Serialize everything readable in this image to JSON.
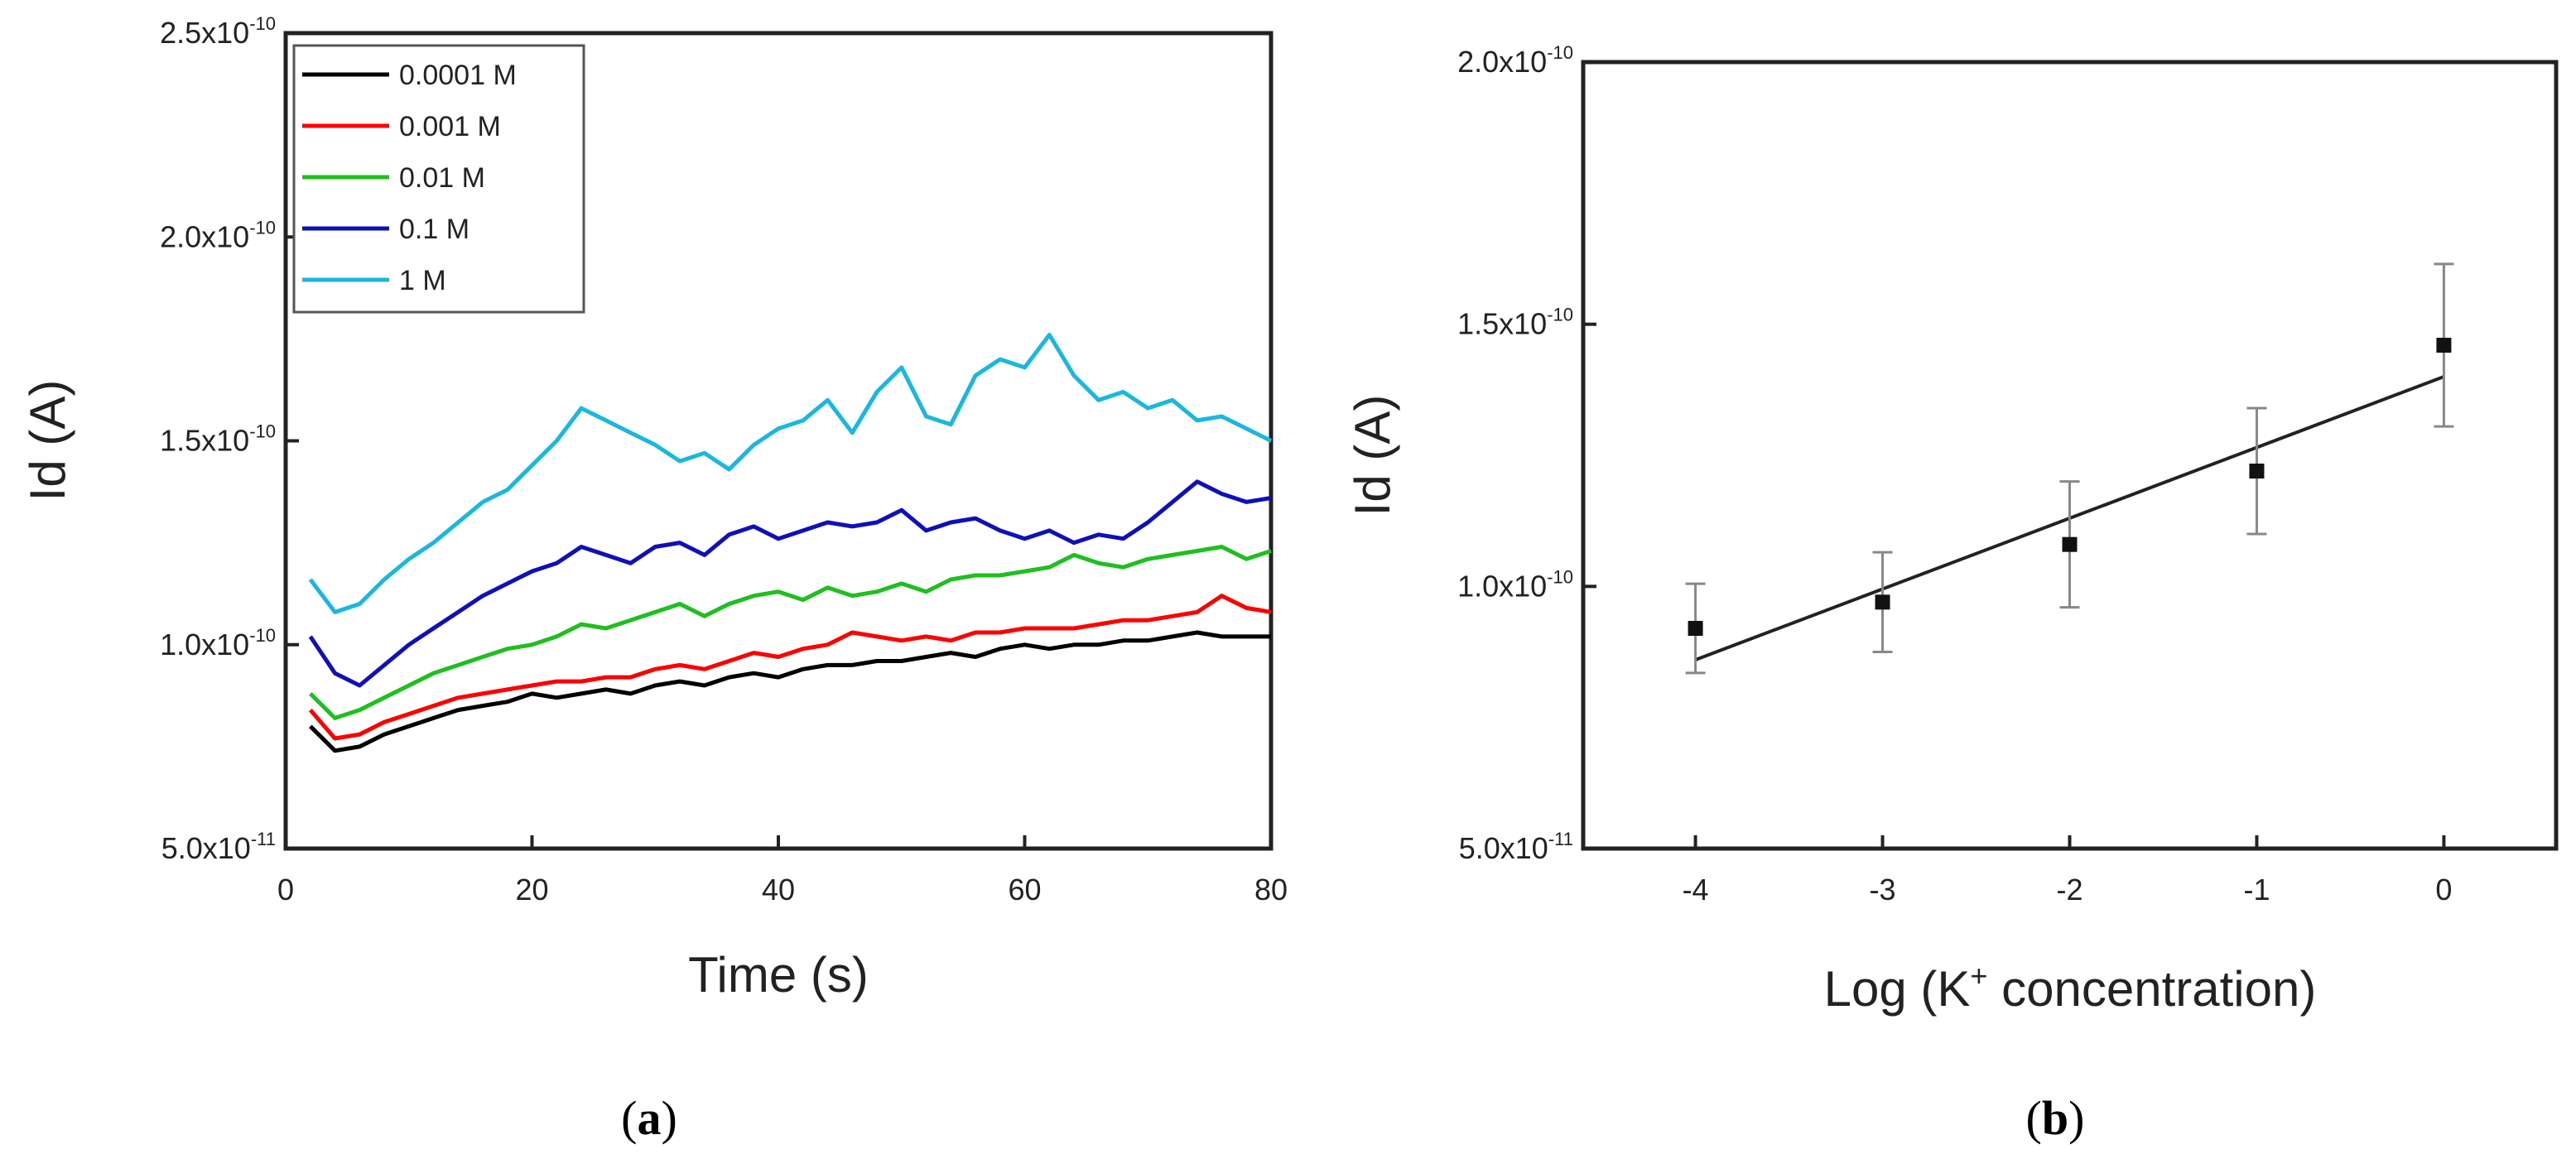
{
  "chart_data": [
    {
      "type": "line",
      "panel_label": "(a)",
      "panel_letter": "a",
      "xlabel": "Time (s)",
      "ylabel": "Id (A)",
      "xlim": [
        0,
        80
      ],
      "ylim": [
        5e-11,
        2.5e-10
      ],
      "x_ticks": [
        0,
        20,
        40,
        60,
        80
      ],
      "x_tick_labels": [
        "0",
        "20",
        "40",
        "60",
        "80"
      ],
      "y_ticks": [
        5e-11,
        1e-10,
        1.5e-10,
        2e-10,
        2.5e-10
      ],
      "y_tick_labels": [
        {
          "mant": "5.0x10",
          "exp": "-11"
        },
        {
          "mant": "1.0x10",
          "exp": "-10"
        },
        {
          "mant": "1.5x10",
          "exp": "-10"
        },
        {
          "mant": "2.0x10",
          "exp": "-10"
        },
        {
          "mant": "2.5x10",
          "exp": "-10"
        }
      ],
      "legend_position": "top-left",
      "x": [
        2,
        4,
        6,
        8,
        10,
        12,
        14,
        16,
        18,
        20,
        22,
        24,
        26,
        28,
        30,
        32,
        34,
        36,
        38,
        40,
        42,
        44,
        46,
        48,
        50,
        52,
        54,
        56,
        58,
        60,
        62,
        64,
        66,
        68,
        70,
        72,
        74,
        76,
        78,
        80
      ],
      "series": [
        {
          "name": "0.0001 M",
          "color": "#000000",
          "values": [
            8e-11,
            7.4e-11,
            7.5e-11,
            7.8e-11,
            8e-11,
            8.2e-11,
            8.4e-11,
            8.5e-11,
            8.6e-11,
            8.8e-11,
            8.7e-11,
            8.8e-11,
            8.9e-11,
            8.8e-11,
            9e-11,
            9.1e-11,
            9e-11,
            9.2e-11,
            9.3e-11,
            9.2e-11,
            9.4e-11,
            9.5e-11,
            9.5e-11,
            9.6e-11,
            9.6e-11,
            9.7e-11,
            9.8e-11,
            9.7e-11,
            9.9e-11,
            1e-10,
            9.9e-11,
            1e-10,
            1e-10,
            1.01e-10,
            1.01e-10,
            1.02e-10,
            1.03e-10,
            1.02e-10,
            1.02e-10,
            1.02e-10
          ]
        },
        {
          "name": "0.001 M",
          "color": "#ff0000",
          "values": [
            8.4e-11,
            7.7e-11,
            7.8e-11,
            8.1e-11,
            8.3e-11,
            8.5e-11,
            8.7e-11,
            8.8e-11,
            8.9e-11,
            9e-11,
            9.1e-11,
            9.1e-11,
            9.2e-11,
            9.2e-11,
            9.4e-11,
            9.5e-11,
            9.4e-11,
            9.6e-11,
            9.8e-11,
            9.7e-11,
            9.9e-11,
            1e-10,
            1.03e-10,
            1.02e-10,
            1.01e-10,
            1.02e-10,
            1.01e-10,
            1.03e-10,
            1.03e-10,
            1.04e-10,
            1.04e-10,
            1.04e-10,
            1.05e-10,
            1.06e-10,
            1.06e-10,
            1.07e-10,
            1.08e-10,
            1.12e-10,
            1.09e-10,
            1.08e-10
          ]
        },
        {
          "name": "0.01 M",
          "color": "#1fbf1f",
          "values": [
            8.8e-11,
            8.2e-11,
            8.4e-11,
            8.7e-11,
            9e-11,
            9.3e-11,
            9.5e-11,
            9.7e-11,
            9.9e-11,
            1e-10,
            1.02e-10,
            1.05e-10,
            1.04e-10,
            1.06e-10,
            1.08e-10,
            1.1e-10,
            1.07e-10,
            1.1e-10,
            1.12e-10,
            1.13e-10,
            1.11e-10,
            1.14e-10,
            1.12e-10,
            1.13e-10,
            1.15e-10,
            1.13e-10,
            1.16e-10,
            1.17e-10,
            1.17e-10,
            1.18e-10,
            1.19e-10,
            1.22e-10,
            1.2e-10,
            1.19e-10,
            1.21e-10,
            1.22e-10,
            1.23e-10,
            1.24e-10,
            1.21e-10,
            1.23e-10
          ]
        },
        {
          "name": "0.1 M",
          "color": "#1010b8",
          "values": [
            1.02e-10,
            9.3e-11,
            9e-11,
            9.5e-11,
            1e-10,
            1.04e-10,
            1.08e-10,
            1.12e-10,
            1.15e-10,
            1.18e-10,
            1.2e-10,
            1.24e-10,
            1.22e-10,
            1.2e-10,
            1.24e-10,
            1.25e-10,
            1.22e-10,
            1.27e-10,
            1.29e-10,
            1.26e-10,
            1.28e-10,
            1.3e-10,
            1.29e-10,
            1.3e-10,
            1.33e-10,
            1.28e-10,
            1.3e-10,
            1.31e-10,
            1.28e-10,
            1.26e-10,
            1.28e-10,
            1.25e-10,
            1.27e-10,
            1.26e-10,
            1.3e-10,
            1.35e-10,
            1.4e-10,
            1.37e-10,
            1.35e-10,
            1.36e-10
          ]
        },
        {
          "name": "1 M",
          "color": "#1ab8e0",
          "values": [
            1.16e-10,
            1.08e-10,
            1.1e-10,
            1.16e-10,
            1.21e-10,
            1.25e-10,
            1.3e-10,
            1.35e-10,
            1.38e-10,
            1.44e-10,
            1.5e-10,
            1.58e-10,
            1.55e-10,
            1.52e-10,
            1.49e-10,
            1.45e-10,
            1.47e-10,
            1.43e-10,
            1.49e-10,
            1.53e-10,
            1.55e-10,
            1.6e-10,
            1.52e-10,
            1.62e-10,
            1.68e-10,
            1.56e-10,
            1.54e-10,
            1.66e-10,
            1.7e-10,
            1.68e-10,
            1.76e-10,
            1.66e-10,
            1.6e-10,
            1.62e-10,
            1.58e-10,
            1.6e-10,
            1.55e-10,
            1.56e-10,
            1.53e-10,
            1.5e-10
          ]
        }
      ]
    },
    {
      "type": "scatter",
      "panel_label": "(b)",
      "panel_letter": "b",
      "xlabel": "Log (K+ concentration)",
      "xlabel_pre": "Log (K",
      "xlabel_sup": "+",
      "xlabel_post": " concentration)",
      "ylabel": "Id (A)",
      "xlim": [
        -4.6,
        0.6
      ],
      "ylim": [
        5e-11,
        2e-10
      ],
      "x_ticks": [
        -4,
        -3,
        -2,
        -1,
        0
      ],
      "x_tick_labels": [
        "-4",
        "-3",
        "-2",
        "-1",
        "0"
      ],
      "y_ticks": [
        5e-11,
        1e-10,
        1.5e-10,
        2e-10
      ],
      "y_tick_labels": [
        {
          "mant": "5.0x10",
          "exp": "-11"
        },
        {
          "mant": "1.0x10",
          "exp": "-10"
        },
        {
          "mant": "1.5x10",
          "exp": "-10"
        },
        {
          "mant": "2.0x10",
          "exp": "-10"
        }
      ],
      "points": [
        {
          "x": -4,
          "y": 9.2e-11,
          "err": 8.5e-12
        },
        {
          "x": -3,
          "y": 9.7e-11,
          "err": 9.5e-12
        },
        {
          "x": -2,
          "y": 1.08e-10,
          "err": 1.2e-11
        },
        {
          "x": -1,
          "y": 1.22e-10,
          "err": 1.2e-11
        },
        {
          "x": 0,
          "y": 1.46e-10,
          "err": 1.55e-11
        }
      ],
      "fit_line": {
        "x": [
          -4,
          0
        ],
        "y": [
          8.6e-11,
          1.4e-10
        ]
      }
    }
  ]
}
